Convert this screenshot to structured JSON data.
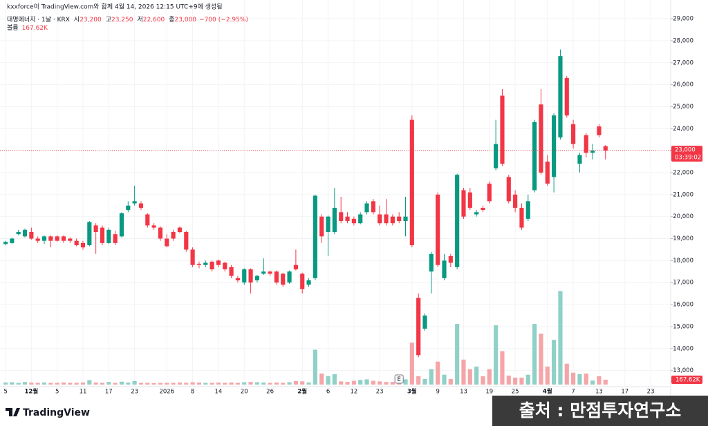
{
  "chart_data": {
    "type": "candlestick",
    "header": "kxxforce이 TradingView.com와 함께 4월 14, 2026 12:15 UTC+9에 생성됨",
    "symbol": "대명에너지 · 1날 · KRX",
    "legend": {
      "labels": [
        "시",
        "고",
        "저",
        "종"
      ],
      "values": [
        23200,
        23250,
        22600,
        23000
      ],
      "value_labels": [
        "23,200",
        "23,250",
        "22,600",
        "23,000"
      ],
      "change": -700,
      "change_label": "−700",
      "change_pct": -2.95,
      "change_pct_label": "(−2.95%)"
    },
    "volume_title": "볼륨",
    "volume_last_label": "167.62K",
    "last_price": {
      "value": 23000,
      "label": "23,000"
    },
    "countdown": "03:39:02",
    "earnings_marker": "E",
    "brand": "TradingView",
    "watermark": "출처 : 만점투자연구소",
    "up_color": "#089981",
    "down_color": "#f23645",
    "volume_up_color": "#8fd0c7",
    "volume_down_color": "#f5a5a8",
    "grid": true,
    "open": [
      18750,
      18800,
      19200,
      19100,
      19300,
      19000,
      18900,
      19100,
      19100,
      19100,
      19000,
      18900,
      18800,
      18700,
      19600,
      19500,
      18800,
      19200,
      19100,
      20300,
      20600,
      20600,
      20100,
      19600,
      19500,
      19000,
      19300,
      19500,
      19300,
      18500,
      17850,
      17800,
      17950,
      18000,
      17900,
      17700,
      17200,
      17000,
      17600,
      17100,
      17400,
      17500,
      17500,
      17400,
      17000,
      17800,
      17400,
      16900,
      17200,
      20000,
      19300,
      19300,
      20200,
      20000,
      19900,
      19700,
      20200,
      20700,
      20100,
      20100,
      20000,
      20000,
      19800,
      24400,
      16300,
      14900,
      17500,
      21000,
      17200,
      18200,
      17700,
      21200,
      21100,
      20100,
      20400,
      21500,
      22200,
      25500,
      21800,
      21000,
      20400,
      19900,
      21200,
      25100,
      22500,
      21800,
      23600,
      26300,
      24200,
      22400,
      23700,
      22900,
      24100,
      23200
    ],
    "high": [
      18900,
      19050,
      19400,
      19450,
      19500,
      19100,
      19150,
      19150,
      19150,
      19150,
      19050,
      19000,
      18900,
      19800,
      19700,
      19600,
      19500,
      19350,
      20200,
      20700,
      21400,
      20700,
      20150,
      19700,
      19550,
      19200,
      19400,
      19550,
      19350,
      18600,
      17950,
      18000,
      18000,
      18050,
      17950,
      17800,
      17300,
      17650,
      17650,
      17350,
      18100,
      17550,
      17550,
      17450,
      17550,
      18500,
      17450,
      17200,
      21000,
      20100,
      20050,
      21300,
      20900,
      20200,
      20000,
      20200,
      20700,
      20800,
      20500,
      20800,
      20100,
      20200,
      20900,
      24600,
      16500,
      15600,
      18400,
      21100,
      18300,
      18300,
      21950,
      21300,
      21300,
      20300,
      20500,
      21600,
      24400,
      25800,
      21900,
      21200,
      20600,
      21000,
      24400,
      25800,
      22800,
      24700,
      27600,
      26400,
      24400,
      22900,
      23800,
      23300,
      24200,
      23250
    ],
    "low": [
      18700,
      18750,
      19150,
      19050,
      18950,
      18800,
      18750,
      18600,
      18850,
      18800,
      18800,
      18650,
      18500,
      18650,
      18300,
      18700,
      18750,
      18700,
      19050,
      20200,
      20500,
      20300,
      19500,
      19400,
      18900,
      18600,
      18900,
      19250,
      18400,
      17700,
      17650,
      17700,
      17500,
      17700,
      17500,
      17200,
      17000,
      16900,
      16500,
      17000,
      17350,
      17300,
      16900,
      16800,
      16950,
      17550,
      16500,
      16800,
      17100,
      18800,
      18200,
      19200,
      19700,
      19700,
      19600,
      19650,
      20100,
      20100,
      19600,
      19600,
      19600,
      19700,
      19100,
      18600,
      13600,
      14800,
      16500,
      17700,
      17100,
      17700,
      17600,
      19900,
      20300,
      20000,
      20200,
      20600,
      22100,
      22300,
      20600,
      20200,
      19400,
      19800,
      21100,
      21900,
      21400,
      21100,
      23500,
      24500,
      23100,
      22000,
      22700,
      22600,
      23600,
      22600
    ],
    "close": [
      18850,
      19000,
      19300,
      19400,
      19000,
      18900,
      19100,
      18900,
      18900,
      18900,
      18900,
      18700,
      18600,
      19750,
      19300,
      18800,
      19400,
      18800,
      20150,
      20500,
      20700,
      20400,
      19600,
      19500,
      19000,
      18650,
      19000,
      19300,
      18500,
      17800,
      17800,
      17900,
      17600,
      17800,
      17600,
      17300,
      17100,
      17600,
      17000,
      17300,
      17500,
      17400,
      17000,
      16900,
      17500,
      17600,
      16700,
      17100,
      20950,
      19100,
      20000,
      20400,
      19800,
      19800,
      19700,
      20100,
      20600,
      20200,
      19700,
      19700,
      19700,
      19800,
      20000,
      18700,
      13700,
      15500,
      18300,
      17800,
      18000,
      17900,
      21900,
      20000,
      20400,
      20200,
      20300,
      20700,
      23300,
      22400,
      20700,
      20400,
      19500,
      20700,
      24300,
      22000,
      21500,
      24600,
      27300,
      24600,
      23300,
      22800,
      22900,
      23000,
      23700,
      23000
    ],
    "volume": [
      70000,
      80000,
      60000,
      90000,
      70000,
      60000,
      70000,
      60000,
      60000,
      70000,
      60000,
      60000,
      70000,
      150000,
      70000,
      60000,
      90000,
      60000,
      100000,
      70000,
      120000,
      60000,
      60000,
      50000,
      60000,
      60000,
      60000,
      70000,
      60000,
      80000,
      70000,
      60000,
      60000,
      70000,
      60000,
      70000,
      60000,
      80000,
      90000,
      80000,
      70000,
      60000,
      70000,
      60000,
      80000,
      120000,
      110000,
      70000,
      1200000,
      380000,
      290000,
      360000,
      110000,
      90000,
      130000,
      160000,
      180000,
      130000,
      110000,
      90000,
      90000,
      100000,
      180000,
      1440000,
      290000,
      190000,
      530000,
      790000,
      340000,
      190000,
      2090000,
      860000,
      530000,
      620000,
      290000,
      530000,
      2040000,
      1150000,
      310000,
      240000,
      240000,
      340000,
      2090000,
      1750000,
      620000,
      1540000,
      3220000,
      720000,
      410000,
      360000,
      380000,
      140000,
      290000,
      167620
    ],
    "vlim": [
      0,
      13000000
    ],
    "xlim": [
      -0.86,
      103.1
    ],
    "xticks": [
      {
        "value": 0,
        "label": "5"
      },
      {
        "value": 4,
        "label": "12월"
      },
      {
        "value": 8,
        "label": "5"
      },
      {
        "value": 12,
        "label": "11"
      },
      {
        "value": 16,
        "label": "17"
      },
      {
        "value": 20,
        "label": "23"
      },
      {
        "value": 25,
        "label": "2026"
      },
      {
        "value": 29,
        "label": "8"
      },
      {
        "value": 33,
        "label": "14"
      },
      {
        "value": 37,
        "label": "20"
      },
      {
        "value": 41,
        "label": "26"
      },
      {
        "value": 46,
        "label": "2월"
      },
      {
        "value": 50,
        "label": "6"
      },
      {
        "value": 54,
        "label": "12"
      },
      {
        "value": 58,
        "label": "23"
      },
      {
        "value": 63,
        "label": "3월"
      },
      {
        "value": 67,
        "label": "9"
      },
      {
        "value": 71,
        "label": "13"
      },
      {
        "value": 75,
        "label": "19"
      },
      {
        "value": 79,
        "label": "25"
      },
      {
        "value": 84,
        "label": "4월"
      },
      {
        "value": 88,
        "label": "7"
      },
      {
        "value": 92,
        "label": "13"
      },
      {
        "value": 96,
        "label": "17"
      },
      {
        "value": 100,
        "label": "23"
      }
    ],
    "ylim": [
      12360,
      29850
    ],
    "yticks": [
      {
        "value": 13000,
        "label": "13,000"
      },
      {
        "value": 14000,
        "label": "14,000"
      },
      {
        "value": 15000,
        "label": "15,000"
      },
      {
        "value": 16000,
        "label": "16,000"
      },
      {
        "value": 17000,
        "label": "17,000"
      },
      {
        "value": 18000,
        "label": "18,000"
      },
      {
        "value": 19000,
        "label": "19,000"
      },
      {
        "value": 20000,
        "label": "20,000"
      },
      {
        "value": 21000,
        "label": "21,000"
      },
      {
        "value": 22000,
        "label": "22,000"
      },
      {
        "value": 23000,
        "label": "23,000"
      },
      {
        "value": 24000,
        "label": "24,000"
      },
      {
        "value": 25000,
        "label": "25,000"
      },
      {
        "value": 26000,
        "label": "26,000"
      },
      {
        "value": 27000,
        "label": "27,000"
      },
      {
        "value": 28000,
        "label": "28,000"
      },
      {
        "value": 29000,
        "label": "29,000"
      }
    ]
  }
}
